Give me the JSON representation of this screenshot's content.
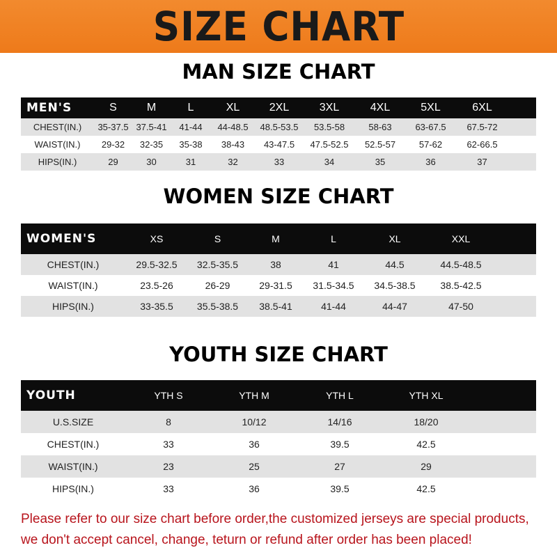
{
  "banner": "SIZE CHART",
  "men": {
    "title": "MAN SIZE CHART",
    "header": [
      "MEN'S",
      "S",
      "M",
      "L",
      "XL",
      "2XL",
      "3XL",
      "4XL",
      "5XL",
      "6XL"
    ],
    "rows": [
      [
        "CHEST(IN.)",
        "35-37.5",
        "37.5-41",
        "41-44",
        "44-48.5",
        "48.5-53.5",
        "53.5-58",
        "58-63",
        "63-67.5",
        "67.5-72"
      ],
      [
        "WAIST(IN.)",
        "29-32",
        "32-35",
        "35-38",
        "38-43",
        "43-47.5",
        "47.5-52.5",
        "52.5-57",
        "57-62",
        "62-66.5"
      ],
      [
        "HIPS(IN.)",
        "29",
        "30",
        "31",
        "32",
        "33",
        "34",
        "35",
        "36",
        "37"
      ]
    ]
  },
  "women": {
    "title": "WOMEN SIZE CHART",
    "header": [
      "WOMEN'S",
      "XS",
      "S",
      "M",
      "L",
      "XL",
      "XXL"
    ],
    "rows": [
      [
        "CHEST(IN.)",
        "29.5-32.5",
        "32.5-35.5",
        "38",
        "41",
        "44.5",
        "44.5-48.5"
      ],
      [
        "WAIST(IN.)",
        "23.5-26",
        "26-29",
        "29-31.5",
        "31.5-34.5",
        "34.5-38.5",
        "38.5-42.5"
      ],
      [
        "HIPS(IN.)",
        "33-35.5",
        "35.5-38.5",
        "38.5-41",
        "41-44",
        "44-47",
        "47-50"
      ]
    ]
  },
  "youth": {
    "title": "YOUTH SIZE CHART",
    "header": [
      "YOUTH",
      "YTH S",
      "YTH M",
      "YTH L",
      "YTH XL"
    ],
    "rows": [
      [
        "U.S.SIZE",
        "8",
        "10/12",
        "14/16",
        "18/20"
      ],
      [
        "CHEST(IN.)",
        "33",
        "36",
        "39.5",
        "42.5"
      ],
      [
        "WAIST(IN.)",
        "23",
        "25",
        "27",
        "29"
      ],
      [
        "HIPS(IN.)",
        "33",
        "36",
        "39.5",
        "42.5"
      ]
    ]
  },
  "footer": [
    "Please refer to our size chart before order,the customized jerseys are special products,",
    "we don't accept cancel, change, teturn or refund after order has been placed!"
  ]
}
